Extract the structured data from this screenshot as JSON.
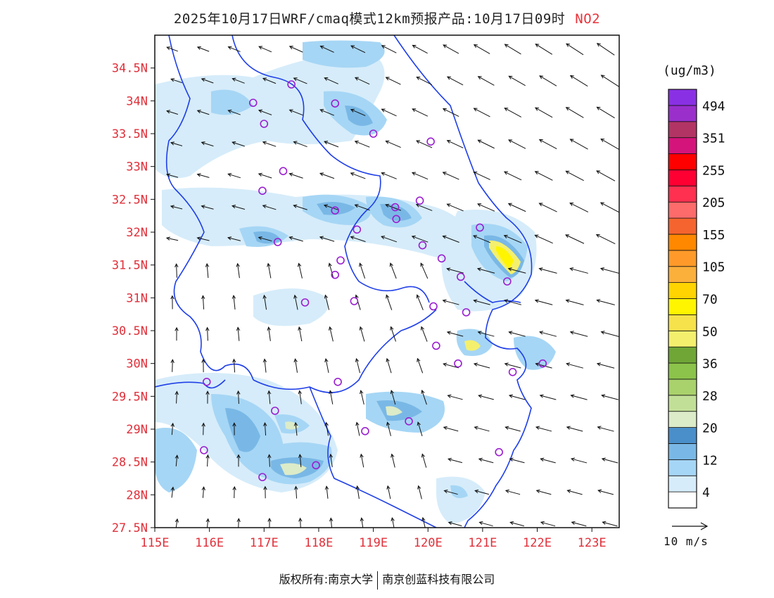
{
  "title": {
    "main": "2025年10月17日WRF/cmaq模式12km预报产品:10月17日09时",
    "species": "NO2"
  },
  "map": {
    "lon_range": [
      115,
      123.5
    ],
    "lat_range": [
      27.5,
      35.0
    ],
    "lon_ticks": [
      "115E",
      "116E",
      "117E",
      "118E",
      "119E",
      "120E",
      "121E",
      "122E",
      "123E"
    ],
    "lat_ticks": [
      "27.5N",
      "28N",
      "28.5N",
      "29N",
      "29.5N",
      "30N",
      "30.5N",
      "31N",
      "31.5N",
      "32N",
      "32.5N",
      "33N",
      "33.5N",
      "34N",
      "34.5N"
    ],
    "boundary_color": "#1f3fe8",
    "station_color": "#9a1fd0",
    "stations": [
      {
        "lon": 117.5,
        "lat": 34.25
      },
      {
        "lon": 116.8,
        "lat": 33.97
      },
      {
        "lon": 118.3,
        "lat": 33.96
      },
      {
        "lon": 117.0,
        "lat": 33.65
      },
      {
        "lon": 119.0,
        "lat": 33.5
      },
      {
        "lon": 120.05,
        "lat": 33.38
      },
      {
        "lon": 117.35,
        "lat": 32.93
      },
      {
        "lon": 116.97,
        "lat": 32.63
      },
      {
        "lon": 119.85,
        "lat": 32.48
      },
      {
        "lon": 119.4,
        "lat": 32.38
      },
      {
        "lon": 118.3,
        "lat": 32.33
      },
      {
        "lon": 119.42,
        "lat": 32.2
      },
      {
        "lon": 120.95,
        "lat": 32.07
      },
      {
        "lon": 118.7,
        "lat": 32.04
      },
      {
        "lon": 117.25,
        "lat": 31.85
      },
      {
        "lon": 119.9,
        "lat": 31.8
      },
      {
        "lon": 120.25,
        "lat": 31.6
      },
      {
        "lon": 118.4,
        "lat": 31.57
      },
      {
        "lon": 118.3,
        "lat": 31.35
      },
      {
        "lon": 120.6,
        "lat": 31.32
      },
      {
        "lon": 121.45,
        "lat": 31.25
      },
      {
        "lon": 117.75,
        "lat": 30.93
      },
      {
        "lon": 118.65,
        "lat": 30.95
      },
      {
        "lon": 120.1,
        "lat": 30.87
      },
      {
        "lon": 120.7,
        "lat": 30.78
      },
      {
        "lon": 120.15,
        "lat": 30.27
      },
      {
        "lon": 120.55,
        "lat": 30.0
      },
      {
        "lon": 121.55,
        "lat": 29.87
      },
      {
        "lon": 122.1,
        "lat": 30.0
      },
      {
        "lon": 115.95,
        "lat": 29.72
      },
      {
        "lon": 118.35,
        "lat": 29.72
      },
      {
        "lon": 117.2,
        "lat": 29.28
      },
      {
        "lon": 119.65,
        "lat": 29.12
      },
      {
        "lon": 118.85,
        "lat": 28.97
      },
      {
        "lon": 115.9,
        "lat": 28.68
      },
      {
        "lon": 121.3,
        "lat": 28.65
      },
      {
        "lon": 117.95,
        "lat": 28.45
      },
      {
        "lon": 116.97,
        "lat": 28.27
      }
    ]
  },
  "wind": {
    "reference_label": "10 m/s"
  },
  "colorbar": {
    "units": "(ug/m3)",
    "colors": [
      "#ffffff",
      "#d6ecfa",
      "#a6d6f5",
      "#79b8e6",
      "#4a8fca",
      "#dcebc8",
      "#c2df98",
      "#a9d16c",
      "#8cc34a",
      "#6fa636",
      "#f4f06e",
      "#f6e24a",
      "#fff500",
      "#ffd400",
      "#fbb03c",
      "#ff9a2a",
      "#ff8800",
      "#f5642e",
      "#fd6b6b",
      "#ff3050",
      "#ff0033",
      "#ff0000",
      "#d4147a",
      "#b23464",
      "#9a2fcc",
      "#8a30e4"
    ],
    "labels": [
      "4",
      "12",
      "20",
      "28",
      "36",
      "50",
      "70",
      "105",
      "155",
      "205",
      "255",
      "351",
      "494"
    ]
  },
  "footer": {
    "left": "版权所有:南京大学",
    "right": "南京创蓝科技有限公司"
  }
}
